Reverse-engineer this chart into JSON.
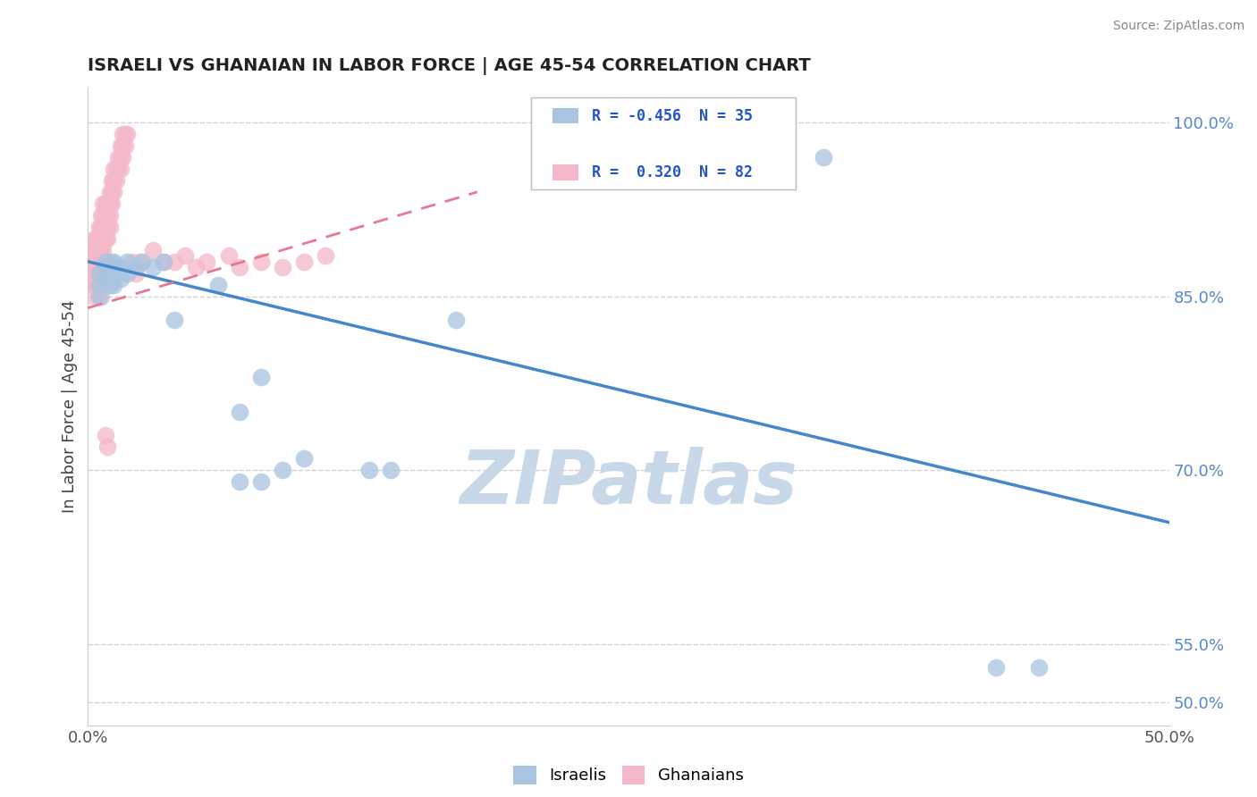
{
  "title": "ISRAELI VS GHANAIAN IN LABOR FORCE | AGE 45-54 CORRELATION CHART",
  "source": "Source: ZipAtlas.com",
  "ylabel": "In Labor Force | Age 45-54",
  "xlim": [
    0.0,
    0.5
  ],
  "ylim": [
    0.48,
    1.03
  ],
  "xticks": [
    0.0,
    0.1,
    0.2,
    0.3,
    0.4,
    0.5
  ],
  "xticklabels": [
    "0.0%",
    "",
    "",
    "",
    "",
    "50.0%"
  ],
  "yticks": [
    0.5,
    0.55,
    0.7,
    0.85,
    1.0
  ],
  "yticklabels": [
    "50.0%",
    "55.0%",
    "70.0%",
    "85.0%",
    "100.0%"
  ],
  "israeli_color": "#a8c4e0",
  "ghanaian_color": "#f4b8c8",
  "israeli_R": -0.456,
  "israeli_N": 35,
  "ghanaian_R": 0.32,
  "ghanaian_N": 82,
  "legend_text_color": "#2255cc",
  "watermark": "ZIPatlas",
  "watermark_color": "#c8d8e8",
  "israeli_scatter": [
    [
      0.005,
      0.87
    ],
    [
      0.005,
      0.86
    ],
    [
      0.005,
      0.85
    ],
    [
      0.008,
      0.875
    ],
    [
      0.008,
      0.865
    ],
    [
      0.008,
      0.88
    ],
    [
      0.01,
      0.87
    ],
    [
      0.01,
      0.86
    ],
    [
      0.01,
      0.88
    ],
    [
      0.01,
      0.865
    ],
    [
      0.012,
      0.88
    ],
    [
      0.012,
      0.87
    ],
    [
      0.012,
      0.86
    ],
    [
      0.015,
      0.875
    ],
    [
      0.015,
      0.865
    ],
    [
      0.018,
      0.88
    ],
    [
      0.018,
      0.87
    ],
    [
      0.022,
      0.875
    ],
    [
      0.025,
      0.88
    ],
    [
      0.03,
      0.875
    ],
    [
      0.035,
      0.88
    ],
    [
      0.04,
      0.83
    ],
    [
      0.06,
      0.86
    ],
    [
      0.07,
      0.75
    ],
    [
      0.08,
      0.78
    ],
    [
      0.09,
      0.7
    ],
    [
      0.1,
      0.71
    ],
    [
      0.13,
      0.7
    ],
    [
      0.14,
      0.7
    ],
    [
      0.17,
      0.83
    ],
    [
      0.07,
      0.69
    ],
    [
      0.08,
      0.69
    ],
    [
      0.34,
      0.97
    ],
    [
      0.42,
      0.53
    ],
    [
      0.44,
      0.53
    ]
  ],
  "ghanaian_scatter": [
    [
      0.002,
      0.87
    ],
    [
      0.002,
      0.88
    ],
    [
      0.002,
      0.89
    ],
    [
      0.002,
      0.86
    ],
    [
      0.003,
      0.87
    ],
    [
      0.003,
      0.88
    ],
    [
      0.003,
      0.89
    ],
    [
      0.003,
      0.9
    ],
    [
      0.003,
      0.86
    ],
    [
      0.003,
      0.85
    ],
    [
      0.004,
      0.88
    ],
    [
      0.004,
      0.89
    ],
    [
      0.004,
      0.9
    ],
    [
      0.004,
      0.87
    ],
    [
      0.004,
      0.86
    ],
    [
      0.005,
      0.89
    ],
    [
      0.005,
      0.9
    ],
    [
      0.005,
      0.91
    ],
    [
      0.005,
      0.88
    ],
    [
      0.005,
      0.87
    ],
    [
      0.006,
      0.9
    ],
    [
      0.006,
      0.91
    ],
    [
      0.006,
      0.92
    ],
    [
      0.006,
      0.89
    ],
    [
      0.006,
      0.88
    ],
    [
      0.007,
      0.91
    ],
    [
      0.007,
      0.92
    ],
    [
      0.007,
      0.93
    ],
    [
      0.007,
      0.9
    ],
    [
      0.007,
      0.89
    ],
    [
      0.008,
      0.91
    ],
    [
      0.008,
      0.92
    ],
    [
      0.008,
      0.93
    ],
    [
      0.008,
      0.9
    ],
    [
      0.008,
      0.88
    ],
    [
      0.009,
      0.92
    ],
    [
      0.009,
      0.93
    ],
    [
      0.009,
      0.91
    ],
    [
      0.009,
      0.9
    ],
    [
      0.01,
      0.92
    ],
    [
      0.01,
      0.93
    ],
    [
      0.01,
      0.94
    ],
    [
      0.01,
      0.91
    ],
    [
      0.011,
      0.93
    ],
    [
      0.011,
      0.94
    ],
    [
      0.011,
      0.95
    ],
    [
      0.012,
      0.94
    ],
    [
      0.012,
      0.95
    ],
    [
      0.012,
      0.96
    ],
    [
      0.013,
      0.95
    ],
    [
      0.013,
      0.96
    ],
    [
      0.014,
      0.96
    ],
    [
      0.014,
      0.97
    ],
    [
      0.015,
      0.96
    ],
    [
      0.015,
      0.97
    ],
    [
      0.015,
      0.98
    ],
    [
      0.016,
      0.97
    ],
    [
      0.016,
      0.98
    ],
    [
      0.016,
      0.99
    ],
    [
      0.017,
      0.98
    ],
    [
      0.017,
      0.99
    ],
    [
      0.018,
      0.99
    ],
    [
      0.005,
      0.86
    ],
    [
      0.006,
      0.85
    ],
    [
      0.007,
      0.87
    ],
    [
      0.02,
      0.88
    ],
    [
      0.022,
      0.87
    ],
    [
      0.024,
      0.88
    ],
    [
      0.03,
      0.89
    ],
    [
      0.035,
      0.88
    ],
    [
      0.04,
      0.88
    ],
    [
      0.045,
      0.885
    ],
    [
      0.05,
      0.875
    ],
    [
      0.055,
      0.88
    ],
    [
      0.065,
      0.885
    ],
    [
      0.07,
      0.875
    ],
    [
      0.08,
      0.88
    ],
    [
      0.09,
      0.875
    ],
    [
      0.1,
      0.88
    ],
    [
      0.11,
      0.885
    ],
    [
      0.008,
      0.73
    ],
    [
      0.009,
      0.72
    ]
  ],
  "israeli_trend_x": [
    0.0,
    0.5
  ],
  "israeli_trend_y": [
    0.88,
    0.655
  ],
  "ghanaian_trend_x": [
    0.0,
    0.18
  ],
  "ghanaian_trend_y": [
    0.84,
    0.94
  ],
  "trend_israeli_color": "#4488cc",
  "trend_ghanaian_color": "#e87890",
  "background_color": "#ffffff",
  "grid_color": "#cccccc"
}
